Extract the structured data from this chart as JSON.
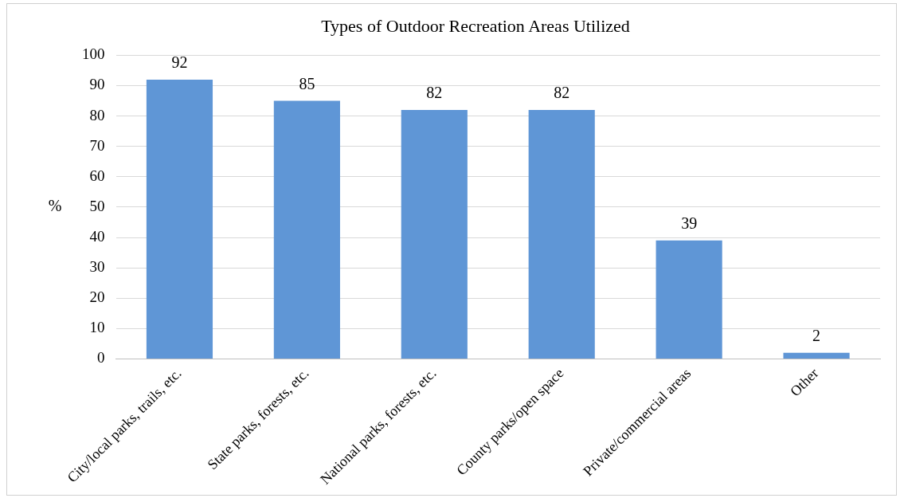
{
  "chart_data": {
    "type": "bar",
    "title": "Types of Outdoor Recreation Areas Utilized",
    "ylabel": "%",
    "categories": [
      "City/local parks, trails, etc.",
      "State parks, forests, etc.",
      "National parks, forests, etc.",
      "County parks/open space",
      "Private/commercial areas",
      "Other"
    ],
    "values": [
      92,
      85,
      82,
      82,
      39,
      2
    ],
    "color": "#5f96d6",
    "ylim": [
      0,
      100
    ],
    "yticks": [
      0,
      10,
      20,
      30,
      40,
      50,
      60,
      70,
      80,
      90,
      100
    ],
    "grid": "y",
    "data_labels": true,
    "legend": false
  }
}
